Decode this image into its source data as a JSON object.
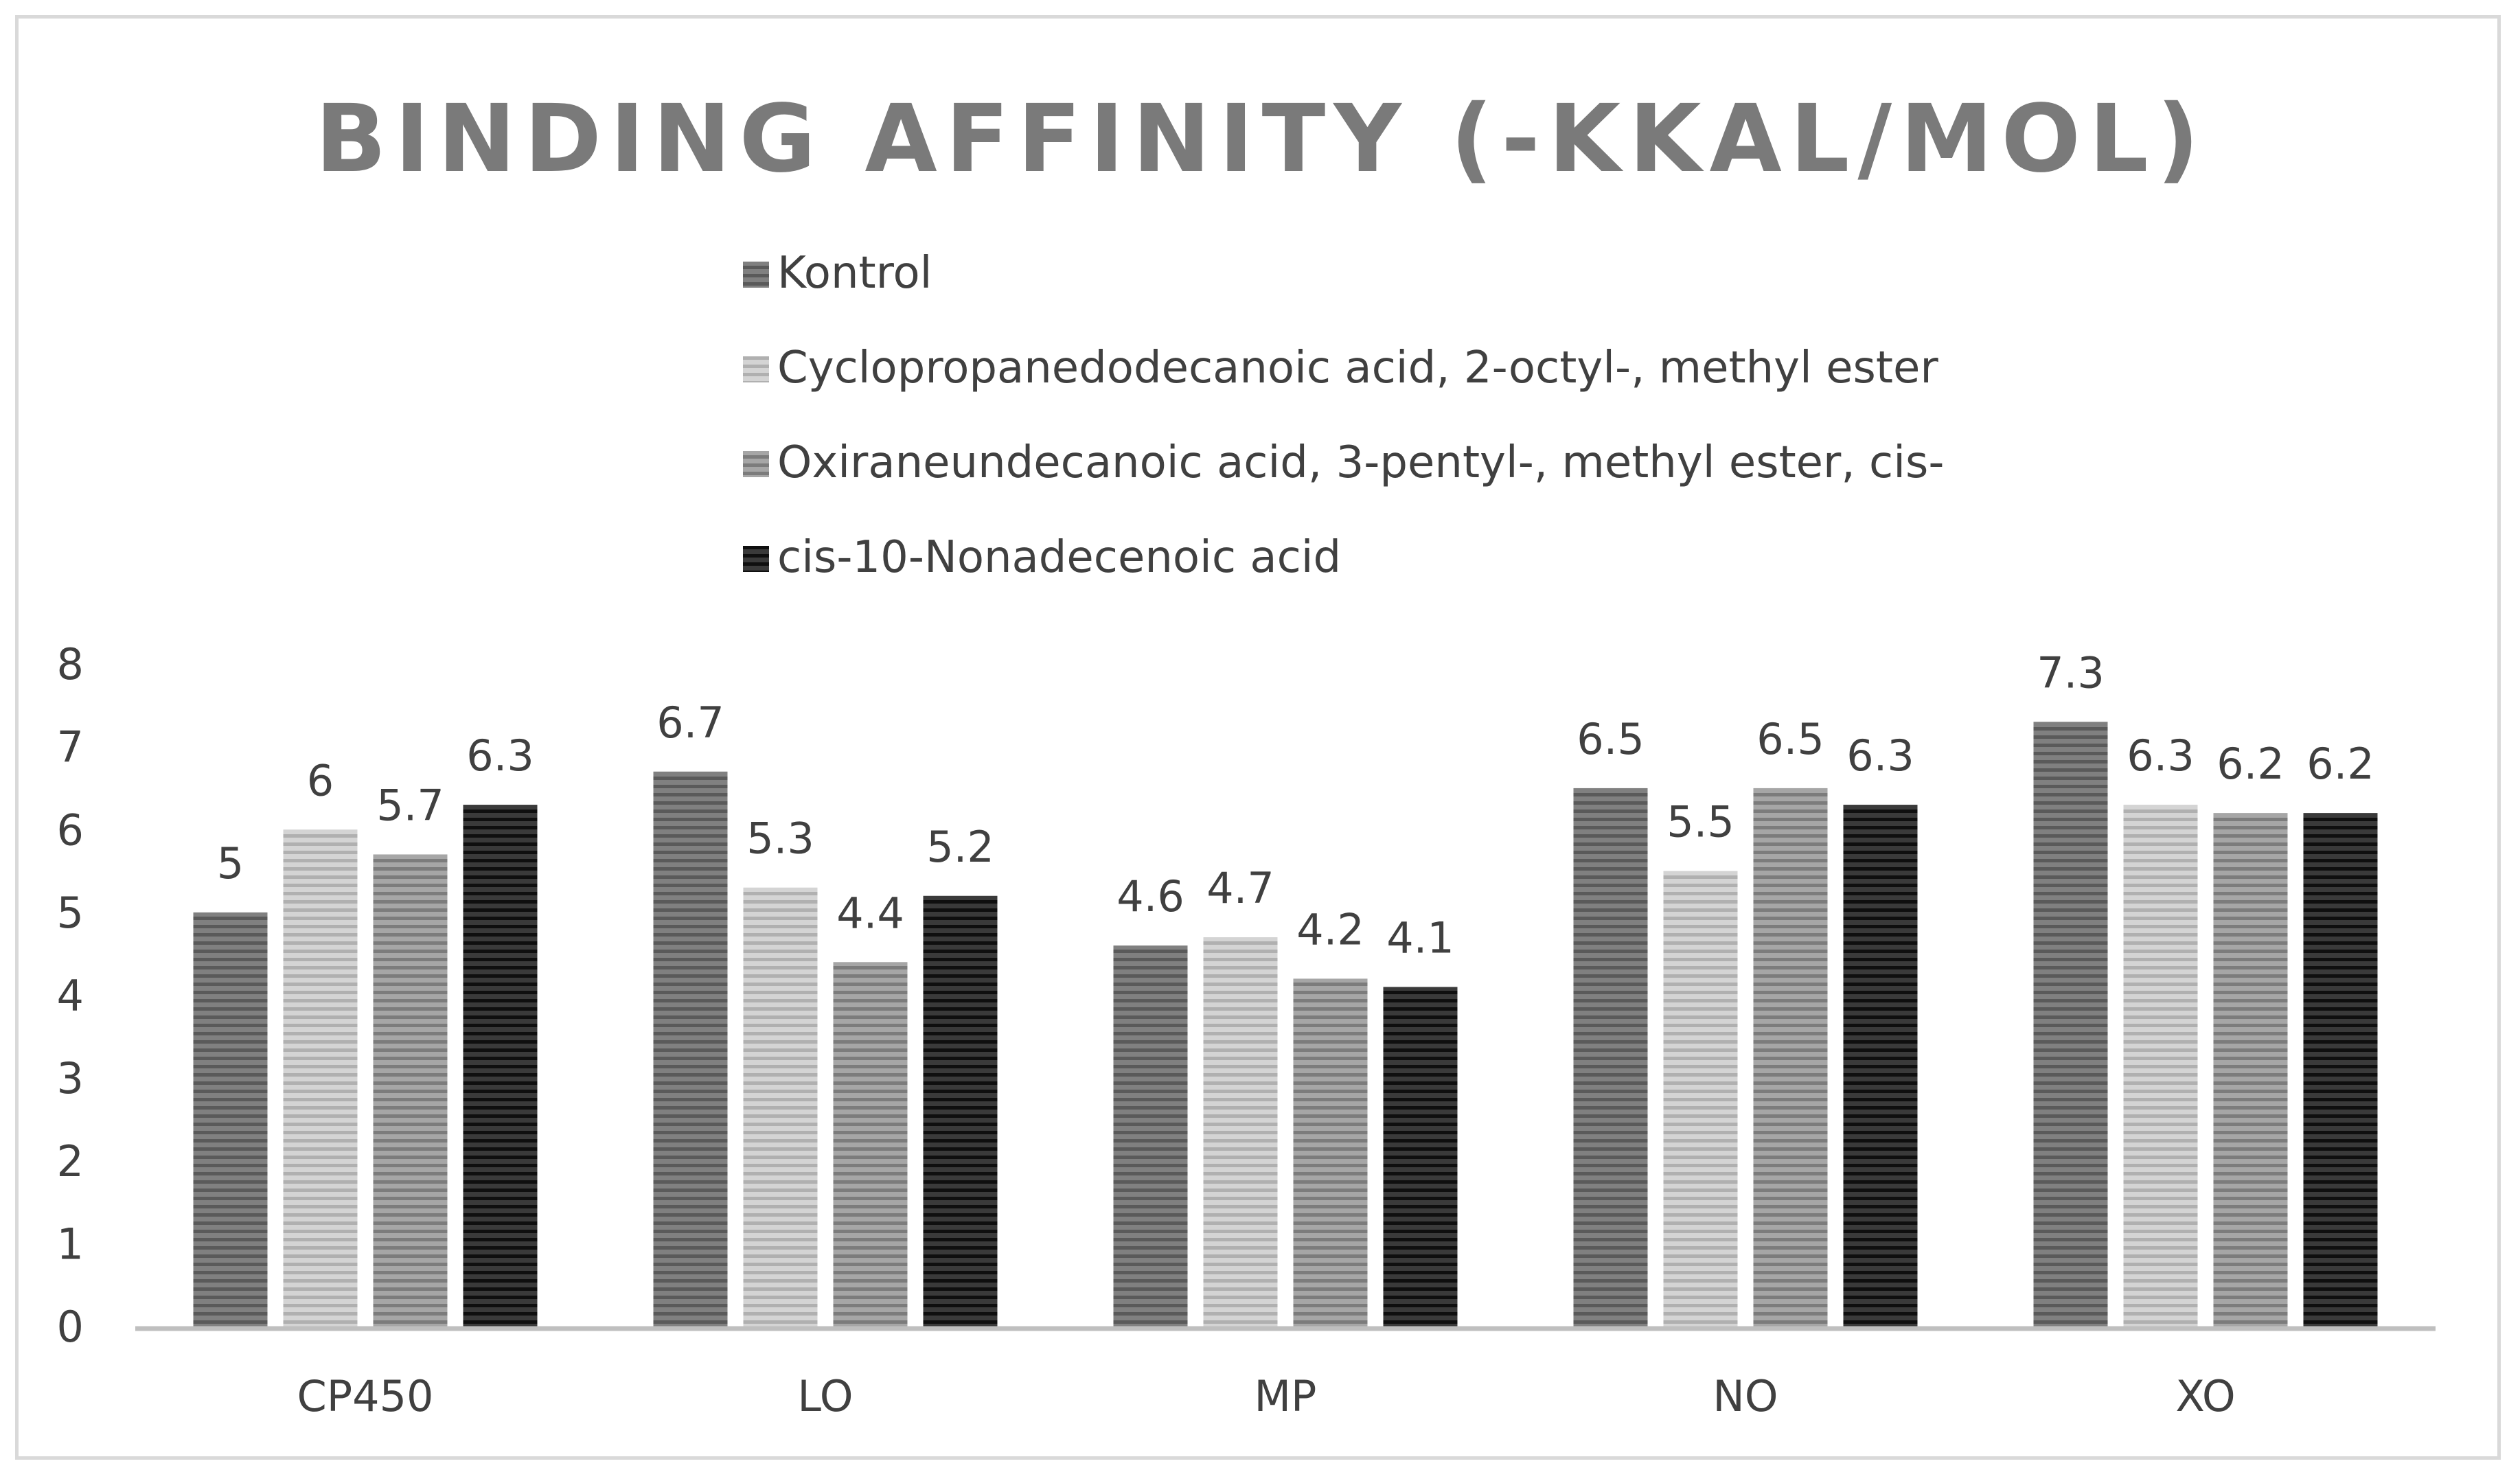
{
  "chart_data": {
    "type": "bar",
    "title": "BINDING AFFINITY (-KKAL/MOL)",
    "xlabel": "",
    "ylabel": "",
    "categories": [
      "CP450",
      "LO",
      "MP",
      "NO",
      "XO"
    ],
    "ylim": [
      0,
      8
    ],
    "yticks": [
      "0",
      "1",
      "2",
      "3",
      "4",
      "5",
      "6",
      "7",
      "8"
    ],
    "grid": false,
    "legend_position": "top",
    "data_labels": true,
    "series": [
      {
        "name": "Kontrol",
        "values": [
          5,
          6.7,
          4.6,
          6.5,
          7.3
        ],
        "labels": [
          "5",
          "6.7",
          "4.6",
          "6.5",
          "7.3"
        ],
        "color": "#808080",
        "stripe": "#5a5a5a"
      },
      {
        "name": "Cyclopropanedodecanoic acid, 2-octyl-, methyl ester",
        "values": [
          6,
          5.3,
          4.7,
          5.5,
          6.3
        ],
        "labels": [
          "6",
          "5.3",
          "4.7",
          "5.5",
          "6.3"
        ],
        "color": "#d4d4d4",
        "stripe": "#b0b0b0"
      },
      {
        "name": "Oxiraneundecanoic acid, 3-pentyl-, methyl ester, cis-",
        "values": [
          5.7,
          4.4,
          4.2,
          6.5,
          6.2
        ],
        "labels": [
          "5.7",
          "4.4",
          "4.2",
          "6.5",
          "6.2"
        ],
        "color": "#a6a6a6",
        "stripe": "#7c7c7c"
      },
      {
        "name": "cis-10-Nonadecenoic acid",
        "values": [
          6.3,
          5.2,
          4.1,
          6.3,
          6.2
        ],
        "labels": [
          "6.3",
          "5.2",
          "4.1",
          "6.3",
          "6.2"
        ],
        "color": "#3a3a3a",
        "stripe": "#0f0f0f"
      }
    ],
    "axis_color": "#bfbfbf"
  }
}
